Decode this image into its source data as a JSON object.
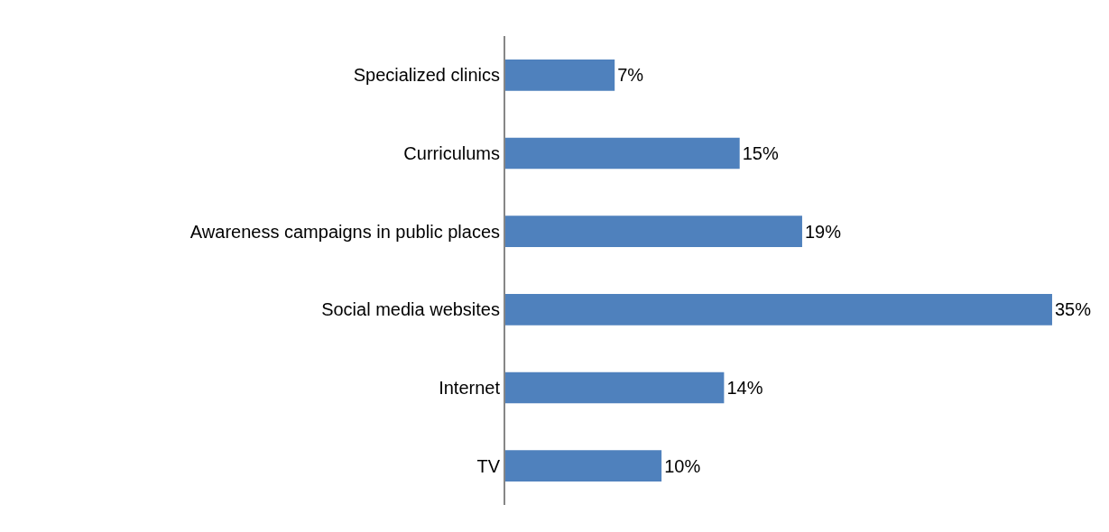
{
  "chart_data": {
    "type": "bar",
    "orientation": "horizontal",
    "categories": [
      "Specialized clinics",
      "Curriculums",
      "Awareness campaigns in public places",
      "Social media websites",
      "Internet",
      "TV"
    ],
    "values": [
      7,
      15,
      19,
      35,
      14,
      10
    ],
    "value_labels": [
      "7%",
      "15%",
      "19%",
      "35%",
      "14%",
      "10%"
    ],
    "color": "#4f81bd"
  }
}
